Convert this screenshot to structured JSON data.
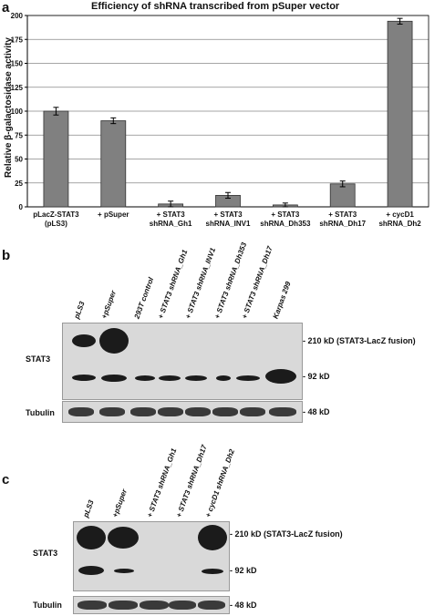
{
  "panel_a": {
    "letter": "a",
    "chart_data": {
      "type": "bar",
      "title": "Efficiency of shRNA transcribed from pSuper vector",
      "ylabel": "Relative β-galactosidase activity",
      "xlabel": "",
      "ylim": [
        0,
        200
      ],
      "yticks": [
        0,
        25,
        50,
        75,
        100,
        125,
        150,
        175,
        200
      ],
      "grid": true,
      "categories": [
        [
          "pLacZ-STAT3",
          "(pLS3)"
        ],
        [
          "+ pSuper"
        ],
        [
          "+ STAT3",
          "shRNA_Gh1"
        ],
        [
          "+ STAT3",
          "shRNA_INV1"
        ],
        [
          "+ STAT3",
          "shRNA_Dh353"
        ],
        [
          "+ STAT3",
          "shRNA_Dh17"
        ],
        [
          "+ cycD1",
          "shRNA_Dh2"
        ]
      ],
      "values": [
        100,
        90,
        3,
        12,
        2,
        24,
        194
      ],
      "errors": [
        4,
        3,
        3,
        3,
        2,
        3,
        3
      ],
      "bar_color": "#808080"
    }
  },
  "panel_b": {
    "letter": "b",
    "lanes": [
      "pLS3",
      "+pSuper",
      "293T control",
      "+ STAT3 shRNA_Gh1",
      "+ STAT3 shRNA_INV1",
      "+ STAT3 shRNA_Dh353",
      "+ STAT3 shRNA_Dh17",
      "Karpas 299"
    ],
    "stat3_label": "STAT3",
    "tubulin_label": "Tubulin",
    "size_210": "- 210 kD (STAT3-LacZ fusion)",
    "size_92": "- 92 kD",
    "size_48": "- 48 kD"
  },
  "panel_c": {
    "letter": "c",
    "lanes": [
      "pLS3",
      "+pSuper",
      "+ STAT3 shRNA_Gh1",
      "+ STAT3 shRNA_Dh17",
      "+ cycD1 shRNA_Dh2"
    ],
    "stat3_label": "STAT3",
    "tubulin_label": "Tubulin",
    "size_210": "- 210 kD (STAT3-LacZ fusion)",
    "size_92": "- 92 kD",
    "size_48": "- 48 kD"
  }
}
